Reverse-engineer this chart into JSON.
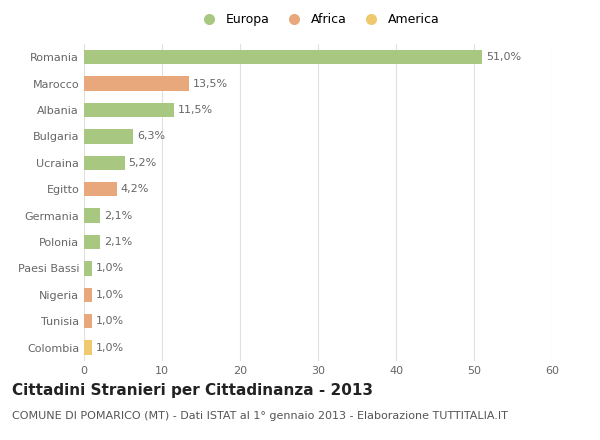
{
  "categories": [
    "Romania",
    "Marocco",
    "Albania",
    "Bulgaria",
    "Ucraina",
    "Egitto",
    "Germania",
    "Polonia",
    "Paesi Bassi",
    "Nigeria",
    "Tunisia",
    "Colombia"
  ],
  "values": [
    51.0,
    13.5,
    11.5,
    6.3,
    5.2,
    4.2,
    2.1,
    2.1,
    1.0,
    1.0,
    1.0,
    1.0
  ],
  "labels": [
    "51,0%",
    "13,5%",
    "11,5%",
    "6,3%",
    "5,2%",
    "4,2%",
    "2,1%",
    "2,1%",
    "1,0%",
    "1,0%",
    "1,0%",
    "1,0%"
  ],
  "continents": [
    "Europa",
    "Africa",
    "Europa",
    "Europa",
    "Europa",
    "Africa",
    "Europa",
    "Europa",
    "Europa",
    "Africa",
    "Africa",
    "America"
  ],
  "colors": {
    "Europa": "#a8c882",
    "Africa": "#e8a87c",
    "America": "#f0c96e"
  },
  "xlim": [
    0,
    60
  ],
  "xticks": [
    0,
    10,
    20,
    30,
    40,
    50,
    60
  ],
  "title": "Cittadini Stranieri per Cittadinanza - 2013",
  "subtitle": "COMUNE DI POMARICO (MT) - Dati ISTAT al 1° gennaio 2013 - Elaborazione TUTTITALIA.IT",
  "bg_color": "#ffffff",
  "grid_color": "#e0e0e0",
  "bar_height": 0.55,
  "title_fontsize": 11,
  "subtitle_fontsize": 8,
  "label_fontsize": 8,
  "tick_fontsize": 8,
  "legend_fontsize": 9
}
